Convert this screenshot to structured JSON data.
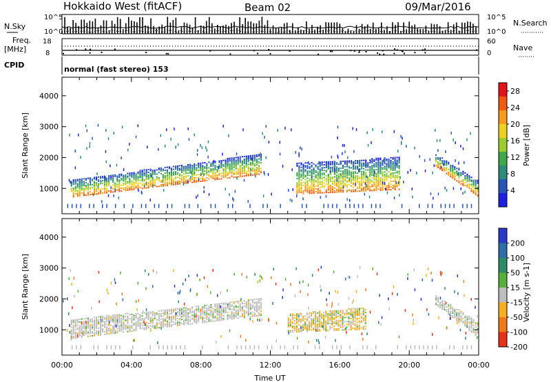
{
  "header": {
    "title": "Hokkaido West (fitACF)",
    "beam": "Beam 02",
    "date": "09/Mar/2016"
  },
  "strip_panels": {
    "nsky_label": "N.Sky",
    "nsearch_label": "N.Search",
    "count_ticks": [
      "10^5",
      "10^0"
    ],
    "freq_label": "Freq.",
    "freq_unit": "[MHz]",
    "freq_ticks": [
      "18",
      "8"
    ],
    "nave_label": "Nave",
    "nave_ticks": [
      "60",
      "0"
    ],
    "cpid_label": "CPID",
    "cpid_text": "normal (fast stereo) 153"
  },
  "chart_data": [
    {
      "type": "heatmap",
      "name": "power-panel",
      "ylabel": "Slant Range [km]",
      "xlabel": "",
      "ylim": [
        180,
        4600
      ],
      "yticks": [
        "1000",
        "2000",
        "3000",
        "4000"
      ],
      "xlim": [
        0,
        24
      ],
      "xticks": [
        "00:00",
        "04:00",
        "08:00",
        "12:00",
        "16:00",
        "20:00",
        "00:00"
      ],
      "colorbar": {
        "label": "Power [dB]",
        "ticks": [
          "4",
          "8",
          "12",
          "16",
          "20",
          "24",
          "28"
        ],
        "range": [
          0,
          30
        ],
        "colors": [
          "#1f1fe0",
          "#2a55b8",
          "#2e8a7a",
          "#3fa84a",
          "#9dcc2f",
          "#f0d021",
          "#f59a1d",
          "#ee5a14",
          "#e0141a"
        ]
      },
      "bands": [
        {
          "segment": "morning-layer",
          "start_ut": 0.5,
          "end_ut": 11.5,
          "range_low_start": 700,
          "range_low_end": 1450,
          "range_high_start": 1250,
          "range_high_end": 2100,
          "peak_db": 22
        },
        {
          "segment": "afternoon-layer",
          "start_ut": 13.5,
          "end_ut": 19.5,
          "range_low_start": 800,
          "range_low_end": 950,
          "range_high_start": 1800,
          "range_high_end": 2000,
          "peak_db": 20
        },
        {
          "segment": "evening-layer",
          "start_ut": 21.5,
          "end_ut": 24,
          "range_low_start": 1700,
          "range_low_end": 700,
          "range_high_start": 2100,
          "range_high_end": 1200,
          "peak_db": 24
        }
      ]
    },
    {
      "type": "heatmap",
      "name": "velocity-panel",
      "ylabel": "Slant Range [km]",
      "xlabel": "Time UT",
      "ylim": [
        180,
        4600
      ],
      "yticks": [
        "1000",
        "2000",
        "3000",
        "4000"
      ],
      "xlim": [
        0,
        24
      ],
      "xticks": [
        "00:00",
        "04:00",
        "08:00",
        "12:00",
        "16:00",
        "20:00",
        "00:00"
      ],
      "colorbar": {
        "label": "Velocity [m s-1]",
        "ticks": [
          "200",
          "100",
          "50",
          "15",
          "-15",
          "-50",
          "-100",
          "-200"
        ],
        "colors": [
          "#2b39c8",
          "#2e6da8",
          "#2f8a6a",
          "#58b03c",
          "#bdbdbd",
          "#f5b021",
          "#f07a19",
          "#e8311a"
        ]
      },
      "bands": [
        {
          "segment": "morning-ground",
          "start_ut": 0.5,
          "end_ut": 11.5,
          "range_low_start": 700,
          "range_low_end": 1450,
          "range_high_start": 1300,
          "range_high_end": 2000,
          "velocity": 0
        },
        {
          "segment": "afternoon-flow",
          "start_ut": 13,
          "end_ut": 17.5,
          "range_low_start": 900,
          "range_low_end": 1000,
          "range_high_start": 1500,
          "range_high_end": 1700,
          "velocity": -40
        },
        {
          "segment": "evening-ground",
          "start_ut": 21.5,
          "end_ut": 24,
          "range_low_start": 1800,
          "range_low_end": 700,
          "range_high_start": 2100,
          "range_high_end": 1200,
          "velocity": 0
        }
      ]
    }
  ]
}
